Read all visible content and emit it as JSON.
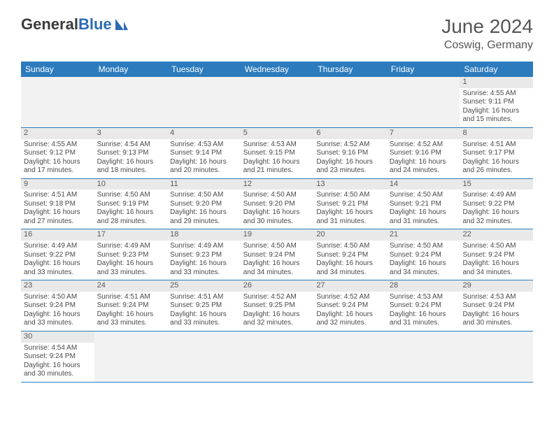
{
  "brand": {
    "part1": "General",
    "part2": "Blue"
  },
  "title": "June 2024",
  "location": "Coswig, Germany",
  "colors": {
    "header_bg": "#2b7bbd",
    "header_text": "#ffffff",
    "border": "#2b7bbd",
    "daynum_bg": "#e9e9e9",
    "text": "#4a4a4a",
    "brand_blue": "#2b6cb3"
  },
  "day_headers": [
    "Sunday",
    "Monday",
    "Tuesday",
    "Wednesday",
    "Thursday",
    "Friday",
    "Saturday"
  ],
  "weeks": [
    [
      {
        "empty": true
      },
      {
        "empty": true
      },
      {
        "empty": true
      },
      {
        "empty": true
      },
      {
        "empty": true
      },
      {
        "empty": true
      },
      {
        "n": "1",
        "sr": "Sunrise: 4:55 AM",
        "ss": "Sunset: 9:11 PM",
        "d1": "Daylight: 16 hours",
        "d2": "and 15 minutes."
      }
    ],
    [
      {
        "n": "2",
        "sr": "Sunrise: 4:55 AM",
        "ss": "Sunset: 9:12 PM",
        "d1": "Daylight: 16 hours",
        "d2": "and 17 minutes."
      },
      {
        "n": "3",
        "sr": "Sunrise: 4:54 AM",
        "ss": "Sunset: 9:13 PM",
        "d1": "Daylight: 16 hours",
        "d2": "and 18 minutes."
      },
      {
        "n": "4",
        "sr": "Sunrise: 4:53 AM",
        "ss": "Sunset: 9:14 PM",
        "d1": "Daylight: 16 hours",
        "d2": "and 20 minutes."
      },
      {
        "n": "5",
        "sr": "Sunrise: 4:53 AM",
        "ss": "Sunset: 9:15 PM",
        "d1": "Daylight: 16 hours",
        "d2": "and 21 minutes."
      },
      {
        "n": "6",
        "sr": "Sunrise: 4:52 AM",
        "ss": "Sunset: 9:16 PM",
        "d1": "Daylight: 16 hours",
        "d2": "and 23 minutes."
      },
      {
        "n": "7",
        "sr": "Sunrise: 4:52 AM",
        "ss": "Sunset: 9:16 PM",
        "d1": "Daylight: 16 hours",
        "d2": "and 24 minutes."
      },
      {
        "n": "8",
        "sr": "Sunrise: 4:51 AM",
        "ss": "Sunset: 9:17 PM",
        "d1": "Daylight: 16 hours",
        "d2": "and 26 minutes."
      }
    ],
    [
      {
        "n": "9",
        "sr": "Sunrise: 4:51 AM",
        "ss": "Sunset: 9:18 PM",
        "d1": "Daylight: 16 hours",
        "d2": "and 27 minutes."
      },
      {
        "n": "10",
        "sr": "Sunrise: 4:50 AM",
        "ss": "Sunset: 9:19 PM",
        "d1": "Daylight: 16 hours",
        "d2": "and 28 minutes."
      },
      {
        "n": "11",
        "sr": "Sunrise: 4:50 AM",
        "ss": "Sunset: 9:20 PM",
        "d1": "Daylight: 16 hours",
        "d2": "and 29 minutes."
      },
      {
        "n": "12",
        "sr": "Sunrise: 4:50 AM",
        "ss": "Sunset: 9:20 PM",
        "d1": "Daylight: 16 hours",
        "d2": "and 30 minutes."
      },
      {
        "n": "13",
        "sr": "Sunrise: 4:50 AM",
        "ss": "Sunset: 9:21 PM",
        "d1": "Daylight: 16 hours",
        "d2": "and 31 minutes."
      },
      {
        "n": "14",
        "sr": "Sunrise: 4:50 AM",
        "ss": "Sunset: 9:21 PM",
        "d1": "Daylight: 16 hours",
        "d2": "and 31 minutes."
      },
      {
        "n": "15",
        "sr": "Sunrise: 4:49 AM",
        "ss": "Sunset: 9:22 PM",
        "d1": "Daylight: 16 hours",
        "d2": "and 32 minutes."
      }
    ],
    [
      {
        "n": "16",
        "sr": "Sunrise: 4:49 AM",
        "ss": "Sunset: 9:22 PM",
        "d1": "Daylight: 16 hours",
        "d2": "and 33 minutes."
      },
      {
        "n": "17",
        "sr": "Sunrise: 4:49 AM",
        "ss": "Sunset: 9:23 PM",
        "d1": "Daylight: 16 hours",
        "d2": "and 33 minutes."
      },
      {
        "n": "18",
        "sr": "Sunrise: 4:49 AM",
        "ss": "Sunset: 9:23 PM",
        "d1": "Daylight: 16 hours",
        "d2": "and 33 minutes."
      },
      {
        "n": "19",
        "sr": "Sunrise: 4:50 AM",
        "ss": "Sunset: 9:24 PM",
        "d1": "Daylight: 16 hours",
        "d2": "and 34 minutes."
      },
      {
        "n": "20",
        "sr": "Sunrise: 4:50 AM",
        "ss": "Sunset: 9:24 PM",
        "d1": "Daylight: 16 hours",
        "d2": "and 34 minutes."
      },
      {
        "n": "21",
        "sr": "Sunrise: 4:50 AM",
        "ss": "Sunset: 9:24 PM",
        "d1": "Daylight: 16 hours",
        "d2": "and 34 minutes."
      },
      {
        "n": "22",
        "sr": "Sunrise: 4:50 AM",
        "ss": "Sunset: 9:24 PM",
        "d1": "Daylight: 16 hours",
        "d2": "and 34 minutes."
      }
    ],
    [
      {
        "n": "23",
        "sr": "Sunrise: 4:50 AM",
        "ss": "Sunset: 9:24 PM",
        "d1": "Daylight: 16 hours",
        "d2": "and 33 minutes."
      },
      {
        "n": "24",
        "sr": "Sunrise: 4:51 AM",
        "ss": "Sunset: 9:24 PM",
        "d1": "Daylight: 16 hours",
        "d2": "and 33 minutes."
      },
      {
        "n": "25",
        "sr": "Sunrise: 4:51 AM",
        "ss": "Sunset: 9:25 PM",
        "d1": "Daylight: 16 hours",
        "d2": "and 33 minutes."
      },
      {
        "n": "26",
        "sr": "Sunrise: 4:52 AM",
        "ss": "Sunset: 9:25 PM",
        "d1": "Daylight: 16 hours",
        "d2": "and 32 minutes."
      },
      {
        "n": "27",
        "sr": "Sunrise: 4:52 AM",
        "ss": "Sunset: 9:24 PM",
        "d1": "Daylight: 16 hours",
        "d2": "and 32 minutes."
      },
      {
        "n": "28",
        "sr": "Sunrise: 4:53 AM",
        "ss": "Sunset: 9:24 PM",
        "d1": "Daylight: 16 hours",
        "d2": "and 31 minutes."
      },
      {
        "n": "29",
        "sr": "Sunrise: 4:53 AM",
        "ss": "Sunset: 9:24 PM",
        "d1": "Daylight: 16 hours",
        "d2": "and 30 minutes."
      }
    ],
    [
      {
        "n": "30",
        "sr": "Sunrise: 4:54 AM",
        "ss": "Sunset: 9:24 PM",
        "d1": "Daylight: 16 hours",
        "d2": "and 30 minutes."
      },
      {
        "empty": true
      },
      {
        "empty": true
      },
      {
        "empty": true
      },
      {
        "empty": true
      },
      {
        "empty": true
      },
      {
        "empty": true
      }
    ]
  ]
}
